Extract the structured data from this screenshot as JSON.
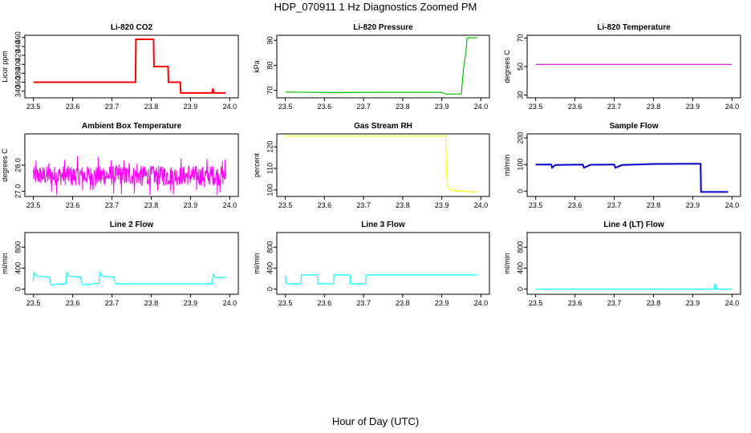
{
  "page": {
    "title": "HDP_070911  1 Hz Diagnostics Zoomed PM",
    "xlabel": "Hour of Day (UTC)"
  },
  "chart_data": [
    {
      "type": "line",
      "title": "Li-820 CO2",
      "ylabel": "Licor ppm",
      "color": "#ff0000",
      "xlim": [
        23.5,
        24.0
      ],
      "ylim": [
        325,
        465
      ],
      "xticks": [
        "23.5",
        "23.6",
        "23.7",
        "23.8",
        "23.9",
        "24.0"
      ],
      "yticks": [
        "340",
        "360",
        "380",
        "400",
        "420",
        "440",
        "460"
      ],
      "series": [
        {
          "x": [
            23.5,
            23.76,
            23.761,
            23.806,
            23.807,
            23.843,
            23.844,
            23.874,
            23.875,
            23.955,
            23.957,
            23.96,
            23.99
          ],
          "y": [
            360,
            360,
            456,
            456,
            395,
            395,
            360,
            360,
            336,
            336,
            346,
            336,
            336
          ]
        }
      ]
    },
    {
      "type": "line",
      "title": "Li-820 Pressure",
      "ylabel": "kPa",
      "color": "#00c000",
      "xlim": [
        23.5,
        24.0
      ],
      "ylim": [
        67,
        92
      ],
      "xticks": [
        "23.5",
        "23.6",
        "23.7",
        "23.8",
        "23.9",
        "24.0"
      ],
      "yticks": [
        "70",
        "80",
        "90"
      ],
      "series": [
        {
          "x": [
            23.5,
            23.62,
            23.75,
            23.9,
            23.91,
            23.95,
            23.955,
            23.962,
            23.965,
            23.975,
            23.99
          ],
          "y": [
            69.3,
            69.1,
            69.2,
            69.2,
            68.5,
            68.5,
            78,
            86,
            91,
            91,
            91
          ]
        }
      ]
    },
    {
      "type": "line",
      "title": "Li-820 Temperature",
      "ylabel": "degrees C",
      "color": "#cc00cc",
      "xlim": [
        23.5,
        24.0
      ],
      "ylim": [
        28,
        72
      ],
      "xticks": [
        "23.5",
        "23.6",
        "23.7",
        "23.8",
        "23.9",
        "24.0"
      ],
      "yticks": [
        "30",
        "50",
        "70"
      ],
      "series": [
        {
          "x": [
            23.5,
            24.0
          ],
          "y": [
            51.5,
            51.5
          ]
        }
      ]
    },
    {
      "type": "line",
      "title": "Ambient Box Temperature",
      "ylabel": "degrees C",
      "color": "#ff00ff",
      "xlim": [
        23.5,
        24.0
      ],
      "ylim": [
        26.8,
        29.2
      ],
      "xticks": [
        "23.5",
        "23.6",
        "23.7",
        "23.8",
        "23.9",
        "24.0"
      ],
      "yticks": [
        "27.0",
        "28.0"
      ],
      "series": [
        {
          "x": [
            23.5,
            23.99
          ],
          "y": [
            27.6,
            27.6
          ]
        }
      ]
    },
    {
      "type": "line",
      "title": "Gas Stream RH",
      "ylabel": "percent",
      "color": "#ffff00",
      "xlim": [
        23.5,
        24.0
      ],
      "ylim": [
        97,
        126
      ],
      "xticks": [
        "23.5",
        "23.6",
        "23.7",
        "23.8",
        "23.9",
        "24.0"
      ],
      "yticks": [
        "100",
        "110",
        "120"
      ],
      "series": [
        {
          "x": [
            23.5,
            23.91,
            23.912,
            23.915,
            23.92,
            23.93,
            23.95,
            23.97,
            23.99
          ],
          "y": [
            125,
            125,
            108,
            102,
            100.5,
            99.8,
            99.4,
            99.2,
            99
          ]
        }
      ]
    },
    {
      "type": "line",
      "title": "Sample Flow",
      "ylabel": "ml/min",
      "color": "#0000cc",
      "xlim": [
        23.5,
        24.0
      ],
      "ylim": [
        -20,
        215
      ],
      "xticks": [
        "23.5",
        "23.6",
        "23.7",
        "23.8",
        "23.9",
        "24.0"
      ],
      "yticks": [
        "0",
        "100",
        "200"
      ],
      "series": [
        {
          "x": [
            23.5,
            23.54,
            23.542,
            23.55,
            23.62,
            23.623,
            23.64,
            23.7,
            23.703,
            23.72,
            23.8,
            23.9,
            23.92,
            23.921,
            23.99
          ],
          "y": [
            100,
            100,
            88,
            98,
            100,
            88,
            99,
            100,
            88,
            98,
            102,
            103,
            103,
            -3,
            -3
          ]
        }
      ]
    },
    {
      "type": "line",
      "title": "Line 2 Flow",
      "ylabel": "ml/min",
      "color": "#00ffff",
      "xlim": [
        23.5,
        24.0
      ],
      "ylim": [
        -100,
        1080
      ],
      "xticks": [
        "23.5",
        "23.6",
        "23.7",
        "23.8",
        "23.9",
        "24.0"
      ],
      "yticks": [
        "0",
        "400",
        "800"
      ],
      "series": [
        {
          "x": [
            23.5,
            23.501,
            23.51,
            23.54,
            23.545,
            23.583,
            23.585,
            23.59,
            23.62,
            23.625,
            23.667,
            23.669,
            23.675,
            23.705,
            23.71,
            23.75,
            23.8,
            23.9,
            23.955,
            23.958,
            23.962,
            23.99
          ],
          "y": [
            150,
            310,
            250,
            230,
            80,
            100,
            320,
            250,
            230,
            80,
            110,
            320,
            250,
            230,
            100,
            100,
            100,
            100,
            100,
            280,
            220,
            220
          ]
        }
      ]
    },
    {
      "type": "line",
      "title": "Line 3 Flow",
      "ylabel": "ml/min",
      "color": "#00ffff",
      "xlim": [
        23.5,
        24.0
      ],
      "ylim": [
        -100,
        1080
      ],
      "xticks": [
        "23.5",
        "23.6",
        "23.7",
        "23.8",
        "23.9",
        "24.0"
      ],
      "yticks": [
        "0",
        "400",
        "800"
      ],
      "series": [
        {
          "x": [
            23.5,
            23.501,
            23.504,
            23.54,
            23.541,
            23.582,
            23.583,
            23.623,
            23.624,
            23.665,
            23.666,
            23.705,
            23.706,
            23.99
          ],
          "y": [
            270,
            130,
            100,
            100,
            270,
            270,
            100,
            100,
            270,
            270,
            100,
            100,
            270,
            270
          ]
        }
      ]
    },
    {
      "type": "line",
      "title": "Line 4 (LT) Flow",
      "ylabel": "ml/min",
      "color": "#00ffff",
      "xlim": [
        23.5,
        24.0
      ],
      "ylim": [
        -100,
        1080
      ],
      "xticks": [
        "23.5",
        "23.6",
        "23.7",
        "23.8",
        "23.9",
        "24.0"
      ],
      "yticks": [
        "0",
        "400",
        "800"
      ],
      "series": [
        {
          "x": [
            23.5,
            23.955,
            23.956,
            23.958,
            23.959,
            24.0
          ],
          "y": [
            0,
            0,
            90,
            90,
            0,
            0
          ]
        }
      ]
    }
  ]
}
